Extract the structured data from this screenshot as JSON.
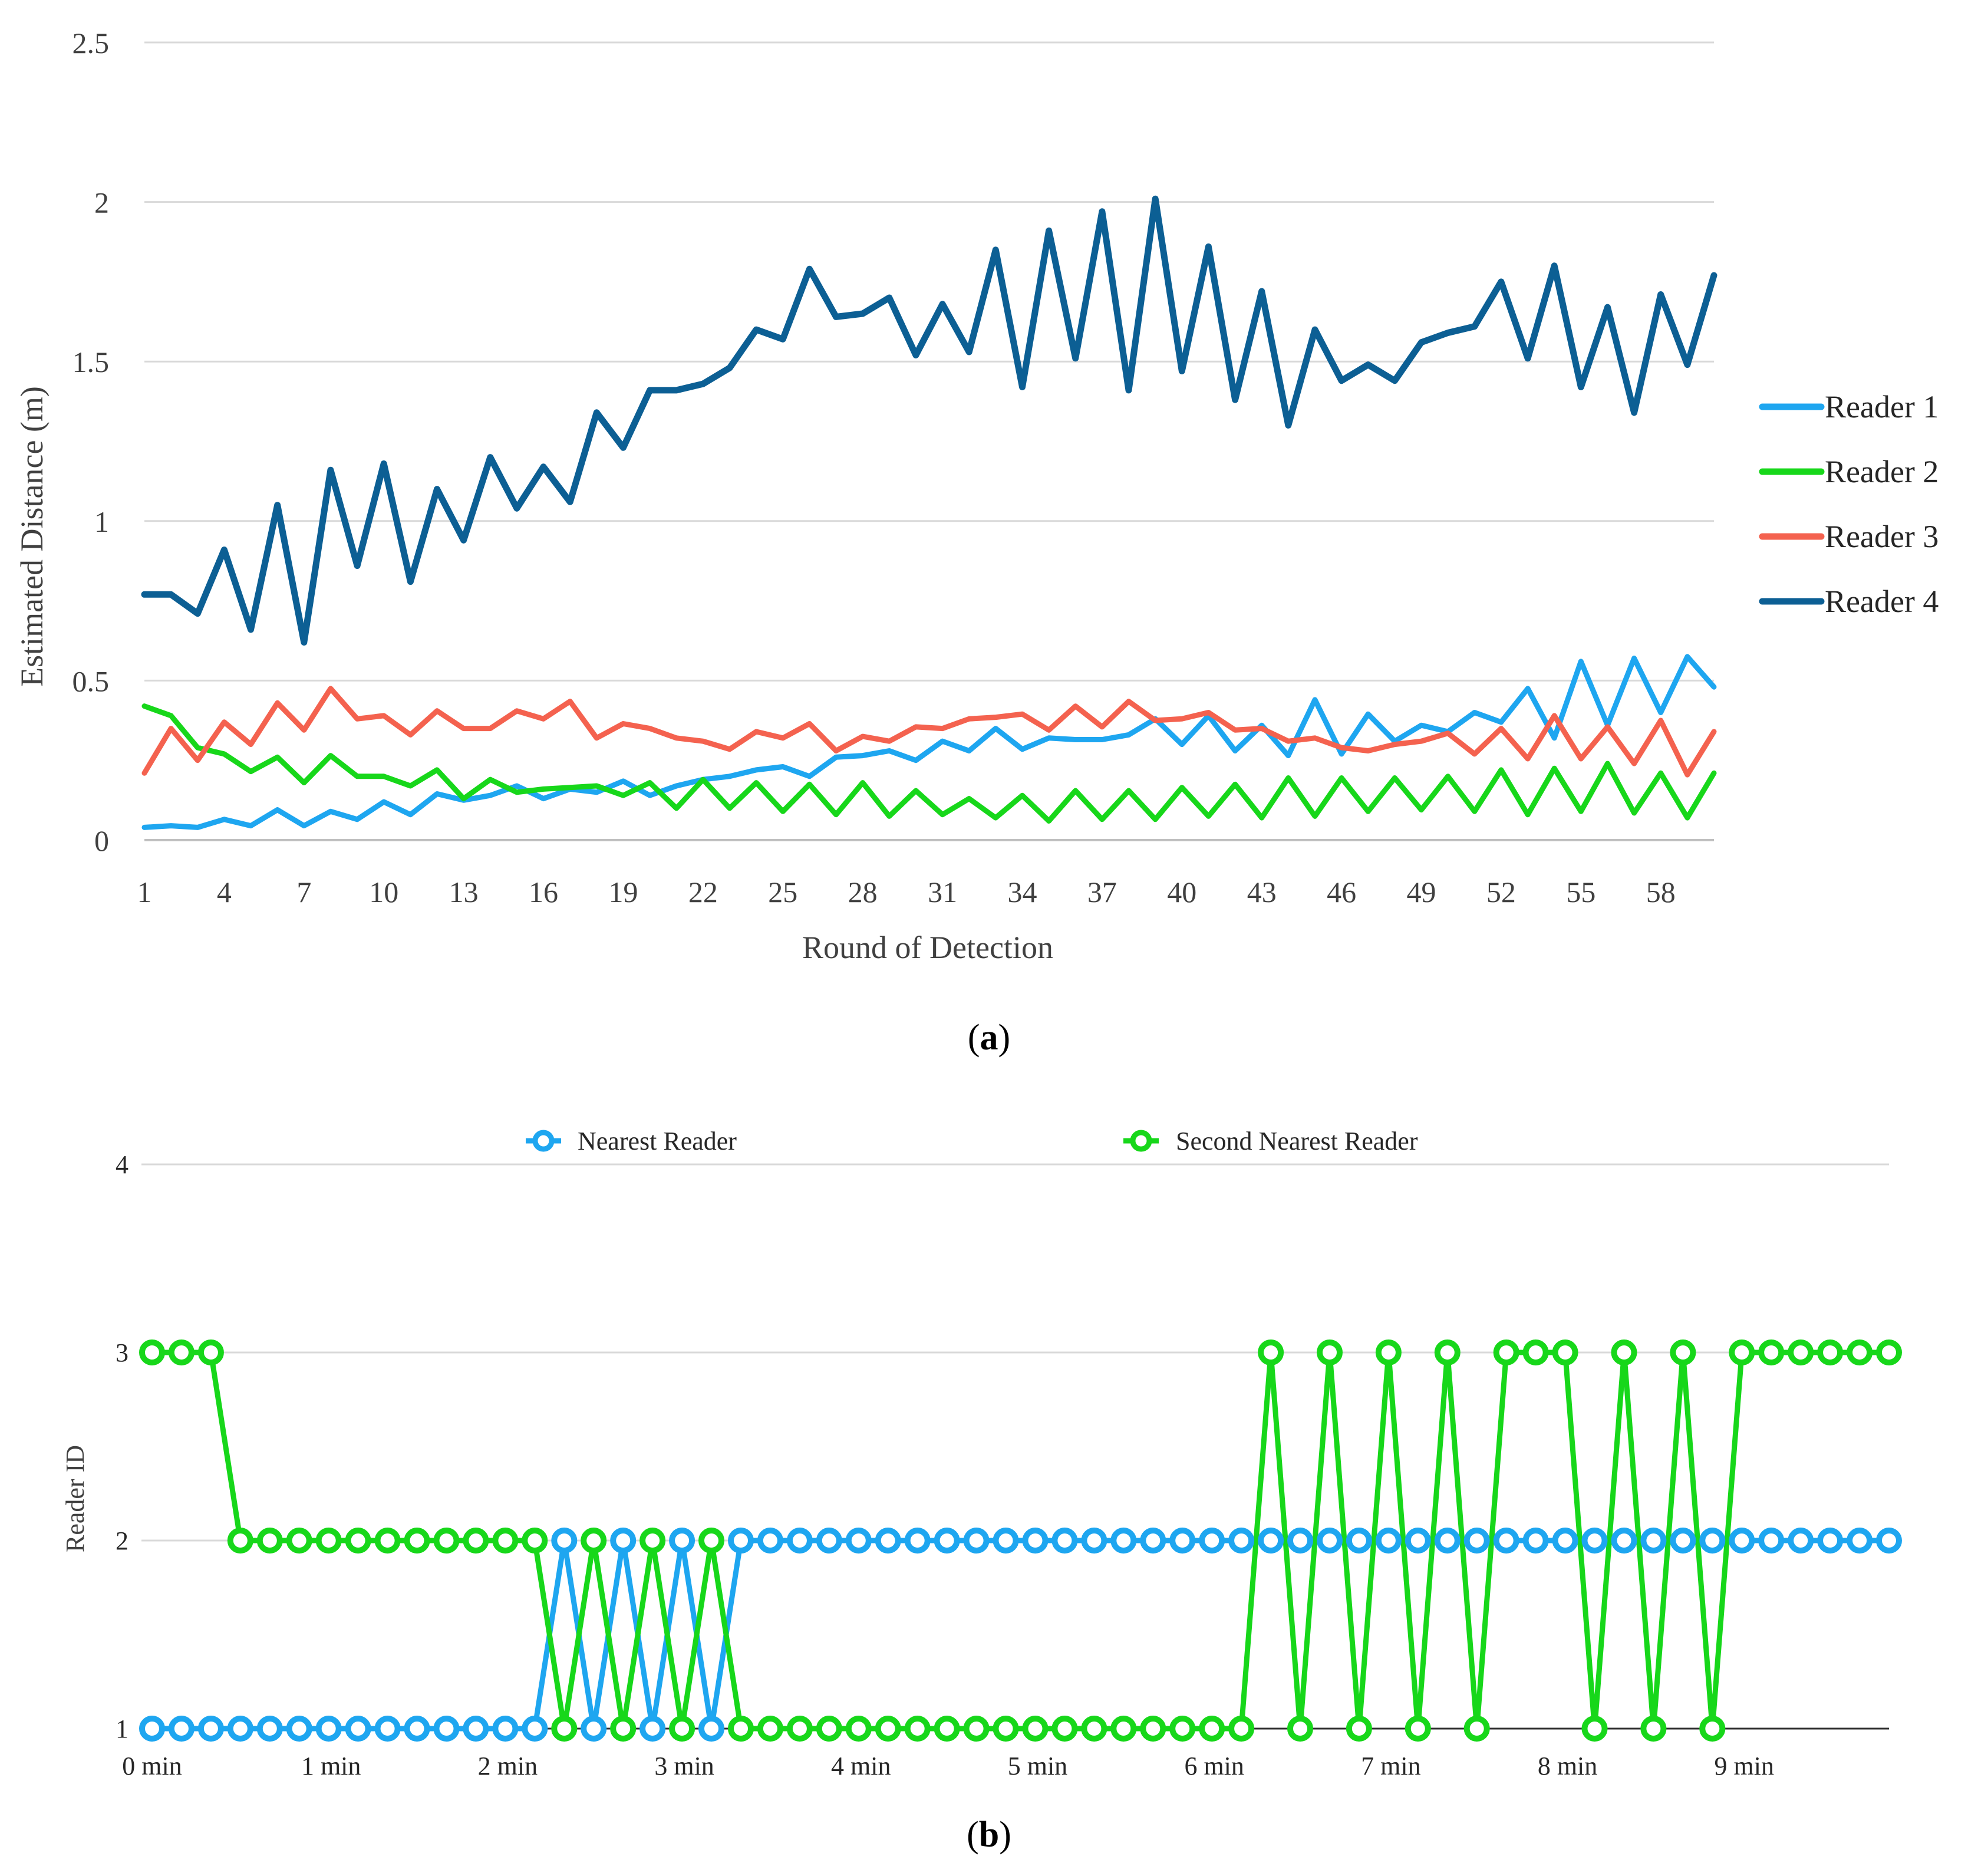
{
  "chart_data": [
    {
      "type": "line",
      "panel_caption_open": "(",
      "panel_caption_letter": "a",
      "panel_caption_close": ")",
      "title": "",
      "xlabel": "Round of Detection",
      "ylabel": "Estimated Distance (m)",
      "ylim": [
        0,
        2.5
      ],
      "yticks": [
        "0",
        "0.5",
        "1",
        "1.5",
        "2",
        "2.5"
      ],
      "ytick_values": [
        0,
        0.5,
        1,
        1.5,
        2,
        2.5
      ],
      "xticks": [
        "1",
        "4",
        "7",
        "10",
        "13",
        "16",
        "19",
        "22",
        "25",
        "28",
        "31",
        "34",
        "37",
        "40",
        "43",
        "46",
        "49",
        "52",
        "55",
        "58"
      ],
      "xtick_values": [
        1,
        4,
        7,
        10,
        13,
        16,
        19,
        22,
        25,
        28,
        31,
        34,
        37,
        40,
        43,
        46,
        49,
        52,
        55,
        58
      ],
      "xlim": [
        1,
        60
      ],
      "grid": "horizontal",
      "legend_position": "right",
      "x": [
        1,
        2,
        3,
        4,
        5,
        6,
        7,
        8,
        9,
        10,
        11,
        12,
        13,
        14,
        15,
        16,
        17,
        18,
        19,
        20,
        21,
        22,
        23,
        24,
        25,
        26,
        27,
        28,
        29,
        30,
        31,
        32,
        33,
        34,
        35,
        36,
        37,
        38,
        39,
        40,
        41,
        42,
        43,
        44,
        45,
        46,
        47,
        48,
        49,
        50,
        51,
        52,
        53,
        54,
        55,
        56,
        57,
        58,
        59,
        60
      ],
      "series": [
        {
          "name": "Reader 1",
          "color": "#1EA6F0",
          "values": [
            0.04,
            0.045,
            0.04,
            0.065,
            0.045,
            0.095,
            0.045,
            0.09,
            0.065,
            0.12,
            0.08,
            0.145,
            0.125,
            0.14,
            0.17,
            0.13,
            0.16,
            0.15,
            0.185,
            0.14,
            0.17,
            0.19,
            0.2,
            0.22,
            0.23,
            0.2,
            0.26,
            0.265,
            0.28,
            0.25,
            0.31,
            0.28,
            0.35,
            0.285,
            0.32,
            0.315,
            0.315,
            0.33,
            0.38,
            0.3,
            0.39,
            0.28,
            0.36,
            0.265,
            0.44,
            0.27,
            0.395,
            0.31,
            0.36,
            0.34,
            0.4,
            0.37,
            0.475,
            0.32,
            0.56,
            0.36,
            0.57,
            0.4,
            0.575,
            0.48
          ]
        },
        {
          "name": "Reader 2",
          "color": "#17D71A",
          "values": [
            0.42,
            0.39,
            0.29,
            0.27,
            0.215,
            0.26,
            0.18,
            0.265,
            0.2,
            0.2,
            0.17,
            0.22,
            0.13,
            0.19,
            0.15,
            0.16,
            0.165,
            0.17,
            0.14,
            0.18,
            0.1,
            0.19,
            0.1,
            0.18,
            0.09,
            0.175,
            0.08,
            0.18,
            0.075,
            0.155,
            0.08,
            0.13,
            0.07,
            0.14,
            0.06,
            0.155,
            0.065,
            0.155,
            0.065,
            0.165,
            0.075,
            0.175,
            0.07,
            0.195,
            0.075,
            0.195,
            0.09,
            0.195,
            0.095,
            0.2,
            0.09,
            0.22,
            0.08,
            0.225,
            0.09,
            0.24,
            0.085,
            0.21,
            0.07,
            0.21
          ]
        },
        {
          "name": "Reader 3",
          "color": "#F4624F",
          "values": [
            0.21,
            0.35,
            0.25,
            0.37,
            0.3,
            0.43,
            0.345,
            0.475,
            0.38,
            0.39,
            0.33,
            0.405,
            0.35,
            0.35,
            0.405,
            0.38,
            0.435,
            0.32,
            0.365,
            0.35,
            0.32,
            0.31,
            0.285,
            0.34,
            0.32,
            0.365,
            0.28,
            0.325,
            0.31,
            0.355,
            0.35,
            0.38,
            0.385,
            0.395,
            0.345,
            0.42,
            0.355,
            0.435,
            0.375,
            0.38,
            0.4,
            0.345,
            0.35,
            0.31,
            0.32,
            0.29,
            0.28,
            0.3,
            0.31,
            0.335,
            0.27,
            0.35,
            0.255,
            0.39,
            0.255,
            0.355,
            0.24,
            0.375,
            0.205,
            0.34
          ]
        },
        {
          "name": "Reader 4",
          "color": "#0C5F94",
          "values": [
            0.77,
            0.77,
            0.71,
            0.91,
            0.66,
            1.05,
            0.62,
            1.16,
            0.86,
            1.18,
            0.81,
            1.1,
            0.94,
            1.2,
            1.04,
            1.17,
            1.06,
            1.34,
            1.23,
            1.41,
            1.41,
            1.43,
            1.48,
            1.6,
            1.57,
            1.79,
            1.64,
            1.65,
            1.7,
            1.52,
            1.68,
            1.53,
            1.85,
            1.42,
            1.91,
            1.51,
            1.97,
            1.41,
            2.01,
            1.47,
            1.86,
            1.38,
            1.72,
            1.3,
            1.6,
            1.44,
            1.49,
            1.44,
            1.56,
            1.59,
            1.61,
            1.75,
            1.51,
            1.8,
            1.42,
            1.67,
            1.34,
            1.71,
            1.49,
            1.77
          ]
        }
      ]
    },
    {
      "type": "line",
      "panel_caption_open": "(",
      "panel_caption_letter": "b",
      "panel_caption_close": ")",
      "title": "",
      "xlabel": "",
      "ylabel": "Reader ID",
      "ylim": [
        1,
        4
      ],
      "yticks": [
        "1",
        "2",
        "3",
        "4"
      ],
      "ytick_values": [
        1,
        2,
        3,
        4
      ],
      "xticks": [
        "0 min",
        "1 min",
        "2 min",
        "3 min",
        "4 min",
        "5 min",
        "6 min",
        "7 min",
        "8 min",
        "9 min"
      ],
      "xtick_values": [
        0,
        6,
        12,
        18,
        24,
        30,
        36,
        42,
        48,
        54
      ],
      "xlim": [
        0,
        59
      ],
      "grid": "horizontal",
      "legend_position": "top",
      "markers": "hollow-circle",
      "x": [
        0,
        1,
        2,
        3,
        4,
        5,
        6,
        7,
        8,
        9,
        10,
        11,
        12,
        13,
        14,
        15,
        16,
        17,
        18,
        19,
        20,
        21,
        22,
        23,
        24,
        25,
        26,
        27,
        28,
        29,
        30,
        31,
        32,
        33,
        34,
        35,
        36,
        37,
        38,
        39,
        40,
        41,
        42,
        43,
        44,
        45,
        46,
        47,
        48,
        49,
        50,
        51,
        52,
        53,
        54,
        55,
        56,
        57,
        58,
        59
      ],
      "series": [
        {
          "name": "Nearest Reader",
          "color": "#1EA6F0",
          "values": [
            1,
            1,
            1,
            1,
            1,
            1,
            1,
            1,
            1,
            1,
            1,
            1,
            1,
            1,
            2,
            1,
            2,
            1,
            2,
            1,
            2,
            2,
            2,
            2,
            2,
            2,
            2,
            2,
            2,
            2,
            2,
            2,
            2,
            2,
            2,
            2,
            2,
            2,
            2,
            2,
            2,
            2,
            2,
            2,
            2,
            2,
            2,
            2,
            2,
            2,
            2,
            2,
            2,
            2,
            2,
            2,
            2,
            2,
            2,
            2
          ]
        },
        {
          "name": "Second Nearest Reader",
          "color": "#17D71A",
          "values": [
            3,
            3,
            3,
            2,
            2,
            2,
            2,
            2,
            2,
            2,
            2,
            2,
            2,
            2,
            1,
            2,
            1,
            2,
            1,
            2,
            1,
            1,
            1,
            1,
            1,
            1,
            1,
            1,
            1,
            1,
            1,
            1,
            1,
            1,
            1,
            1,
            1,
            1,
            3,
            1,
            3,
            1,
            3,
            1,
            3,
            1,
            3,
            3,
            3,
            1,
            3,
            1,
            3,
            1,
            3,
            3,
            3,
            3,
            3,
            3
          ]
        }
      ]
    }
  ]
}
